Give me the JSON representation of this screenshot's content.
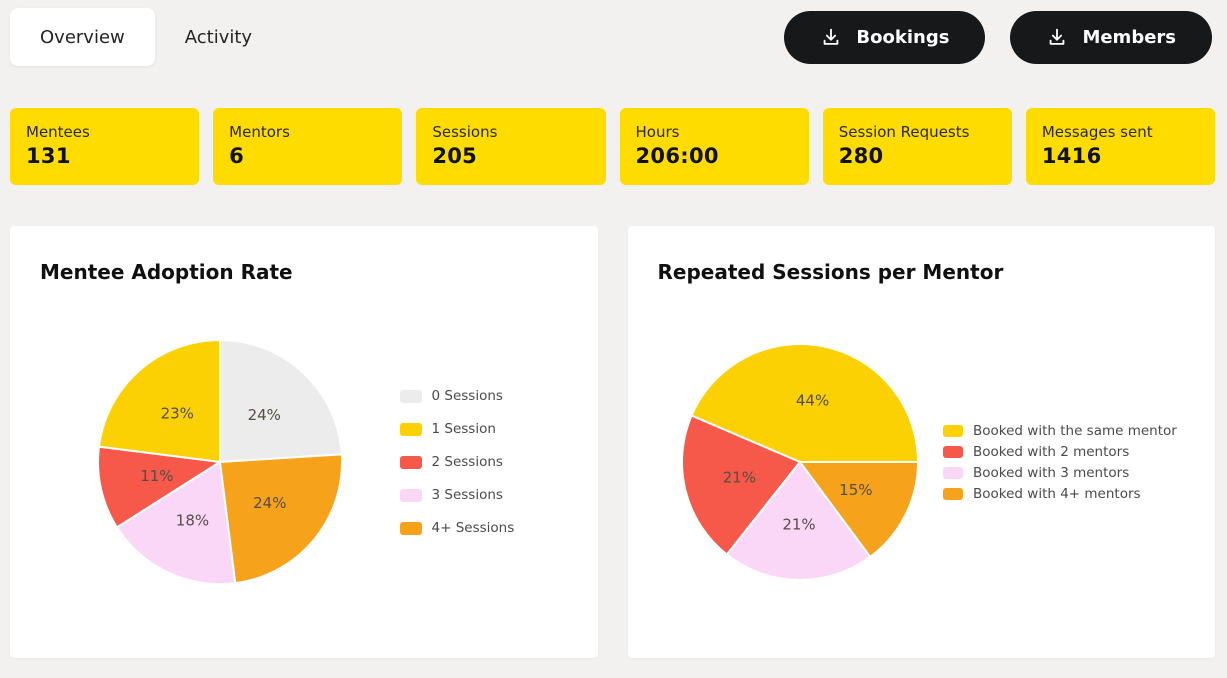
{
  "theme": {
    "background": "#f2f1f0",
    "card_surface": "#ffffff",
    "card_yellow": "#ffdc00",
    "button_bg": "#17181a",
    "button_text": "#ffffff",
    "text_dark": "#1c1c1c",
    "legend_text": "#4a4a4a",
    "pct_label": "#544e46"
  },
  "tabs": [
    {
      "label": "Overview",
      "active": true
    },
    {
      "label": "Activity",
      "active": false
    }
  ],
  "actions": [
    {
      "label": "Bookings"
    },
    {
      "label": "Members"
    }
  ],
  "stats": [
    {
      "label": "Mentees",
      "value": "131"
    },
    {
      "label": "Mentors",
      "value": "6"
    },
    {
      "label": "Sessions",
      "value": "205"
    },
    {
      "label": "Hours",
      "value": "206:00"
    },
    {
      "label": "Session Requests",
      "value": "280"
    },
    {
      "label": "Messages sent",
      "value": "1416"
    }
  ],
  "chart_data": [
    {
      "type": "pie",
      "title": "Mentee Adoption Rate",
      "labels": [
        "0 Sessions",
        "1 Session",
        "2 Sessions",
        "3 Sessions",
        "4+ Sessions"
      ],
      "values": [
        24,
        23,
        11,
        18,
        24
      ],
      "unit": "%",
      "colors": [
        "#ececec",
        "#fbd104",
        "#f6584a",
        "#fbd7f7",
        "#f6a21b"
      ],
      "legend_position": "right",
      "start_angle_deg": 3.6,
      "direction": "ccw",
      "label_radius": 0.53
    },
    {
      "type": "pie",
      "title": "Repeated Sessions per Mentor",
      "labels": [
        "Booked with the same mentor",
        "Booked with 2 mentors",
        "Booked with 3 mentors",
        "Booked with 4+ mentors"
      ],
      "values": [
        44,
        21,
        21,
        15
      ],
      "unit": "%",
      "colors": [
        "#fbd104",
        "#f6584a",
        "#fbd7f7",
        "#f6a21b"
      ],
      "legend_position": "right",
      "start_angle_deg": 0,
      "direction": "ccw",
      "label_radius": 0.53
    }
  ]
}
